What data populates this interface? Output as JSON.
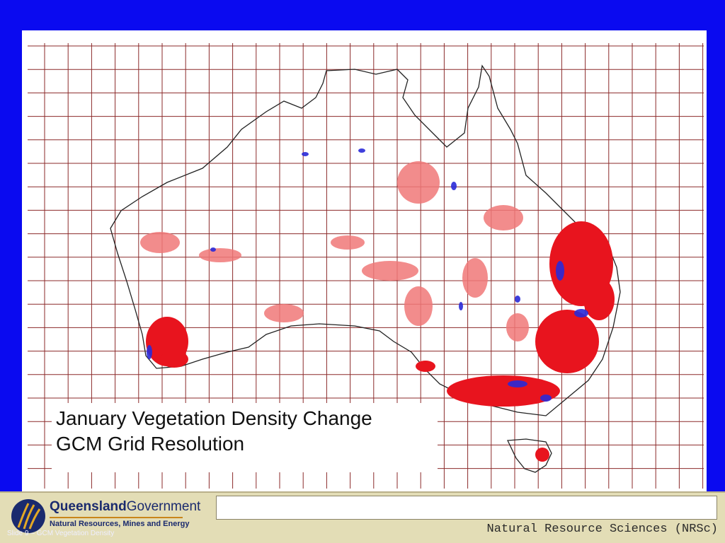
{
  "map": {
    "caption_line1": "January Vegetation Density Change",
    "caption_line2": "GCM Grid Resolution",
    "grid_color": "#8b2a2a",
    "coast_color": "#222222",
    "increase_strong_color": "#e8141e",
    "increase_light_color": "#f07878",
    "decrease_color": "#2a2ad8"
  },
  "footer": {
    "brand_main": "Queensland",
    "brand_gov": "Government",
    "brand_sub": "Natural Resources, Mines and Energy",
    "credit": "Natural Resource Sciences (NRSc)",
    "slide_label": "Slide 9 – GCM Vegetation Density"
  },
  "colors": {
    "background_blue": "#0a0af0",
    "footer_bg": "#e3ddb6",
    "brand_navy": "#1a2a6e",
    "brand_orange": "#c9861a"
  }
}
